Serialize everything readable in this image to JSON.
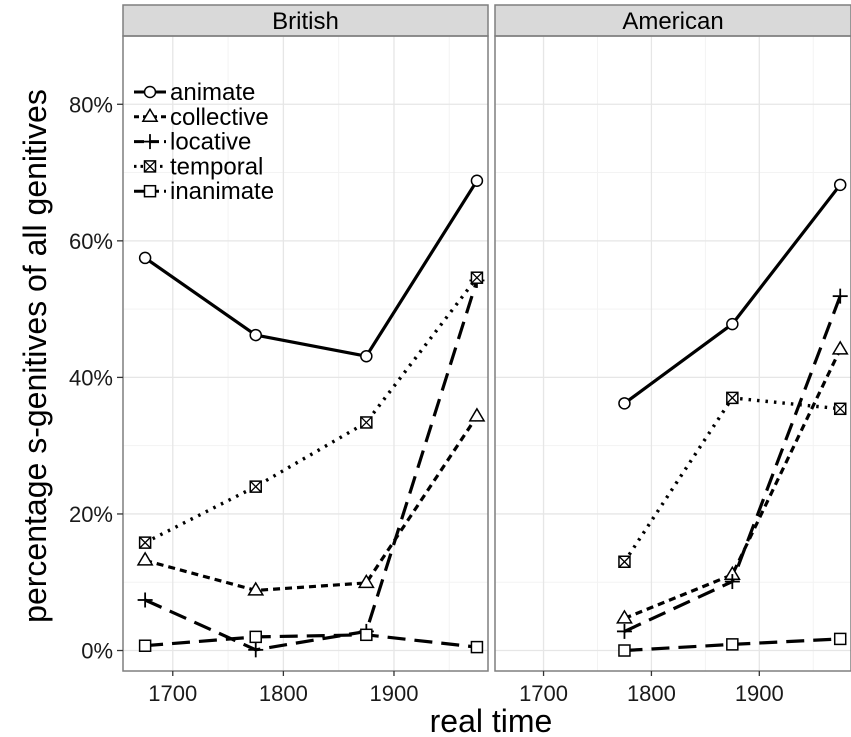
{
  "chart_data": {
    "type": "line",
    "xlabel": "real time",
    "ylabel": "percentage s-genitives of all genitives",
    "xlim": [
      1655,
      1985
    ],
    "ylim": [
      -3,
      90
    ],
    "x_ticks": [
      1700,
      1800,
      1900
    ],
    "y_ticks": [
      0,
      20,
      40,
      60,
      80
    ],
    "y_tick_labels": [
      "0%",
      "20%",
      "40%",
      "60%",
      "80%"
    ],
    "grid": true,
    "legend_position": "top-left",
    "panels": [
      {
        "title": "British",
        "series": [
          {
            "name": "animate",
            "x": [
              1675,
              1775,
              1875,
              1975
            ],
            "y": [
              57.5,
              46.2,
              43.1,
              68.8
            ]
          },
          {
            "name": "collective",
            "x": [
              1675,
              1775,
              1875,
              1975
            ],
            "y": [
              13.2,
              8.8,
              9.9,
              34.3
            ]
          },
          {
            "name": "locative",
            "x": [
              1675,
              1775,
              1875,
              1975
            ],
            "y": [
              7.4,
              0.1,
              2.8,
              54.2
            ]
          },
          {
            "name": "temporal",
            "x": [
              1675,
              1775,
              1875,
              1975
            ],
            "y": [
              15.8,
              24.0,
              33.4,
              54.6
            ]
          },
          {
            "name": "inanimate",
            "x": [
              1675,
              1775,
              1875,
              1975
            ],
            "y": [
              0.7,
              2.0,
              2.3,
              0.5
            ]
          }
        ]
      },
      {
        "title": "American",
        "series": [
          {
            "name": "animate",
            "x": [
              1775,
              1875,
              1975
            ],
            "y": [
              36.2,
              47.8,
              68.2
            ]
          },
          {
            "name": "collective",
            "x": [
              1775,
              1875,
              1975
            ],
            "y": [
              4.7,
              11.1,
              44.1
            ]
          },
          {
            "name": "locative",
            "x": [
              1775,
              1875,
              1975
            ],
            "y": [
              2.8,
              10.1,
              51.9
            ]
          },
          {
            "name": "temporal",
            "x": [
              1775,
              1875,
              1975
            ],
            "y": [
              13.0,
              37.0,
              35.4
            ]
          },
          {
            "name": "inanimate",
            "x": [
              1775,
              1875,
              1975
            ],
            "y": [
              0.0,
              0.9,
              1.7
            ]
          }
        ]
      }
    ]
  },
  "styles": {
    "animate": {
      "dash": "solid",
      "marker": "circle"
    },
    "collective": {
      "dash": "short-dash",
      "marker": "triangle"
    },
    "locative": {
      "dash": "long-dash",
      "marker": "plus"
    },
    "temporal": {
      "dash": "dotted",
      "marker": "boxed-x"
    },
    "inanimate": {
      "dash": "long-dash",
      "marker": "square"
    }
  },
  "colors": {
    "line": "#000000",
    "panel_border": "#7f7f7f",
    "strip_fill": "#d9d9d9",
    "grid_major": "#e6e6e6",
    "grid_minor": "#f3f3f3",
    "tick_text": "#1a1a1a"
  }
}
